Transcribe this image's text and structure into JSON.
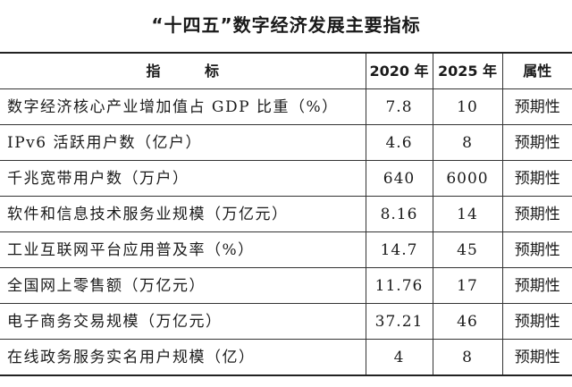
{
  "title": "“十四五”数字经济发展主要指标",
  "table": {
    "headers": {
      "indicator": "指 标",
      "y2020": "2020 年",
      "y2025": "2025 年",
      "attribute": "属性"
    },
    "rows": [
      {
        "indicator": "数字经济核心产业增加值占 GDP 比重（%）",
        "y2020": "7.8",
        "y2025": "10",
        "attribute": "预期性"
      },
      {
        "indicator": "IPv6 活跃用户数（亿户）",
        "y2020": "4.6",
        "y2025": "8",
        "attribute": "预期性"
      },
      {
        "indicator": "千兆宽带用户数（万户）",
        "y2020": "640",
        "y2025": "6000",
        "attribute": "预期性"
      },
      {
        "indicator": "软件和信息技术服务业规模（万亿元）",
        "y2020": "8.16",
        "y2025": "14",
        "attribute": "预期性"
      },
      {
        "indicator": "工业互联网平台应用普及率（%）",
        "y2020": "14.7",
        "y2025": "45",
        "attribute": "预期性"
      },
      {
        "indicator": "全国网上零售额（万亿元）",
        "y2020": "11.76",
        "y2025": "17",
        "attribute": "预期性"
      },
      {
        "indicator": "电子商务交易规模（万亿元）",
        "y2020": "37.21",
        "y2025": "46",
        "attribute": "预期性"
      },
      {
        "indicator": "在线政务服务实名用户规模（亿）",
        "y2020": "4",
        "y2025": "8",
        "attribute": "预期性"
      }
    ]
  }
}
